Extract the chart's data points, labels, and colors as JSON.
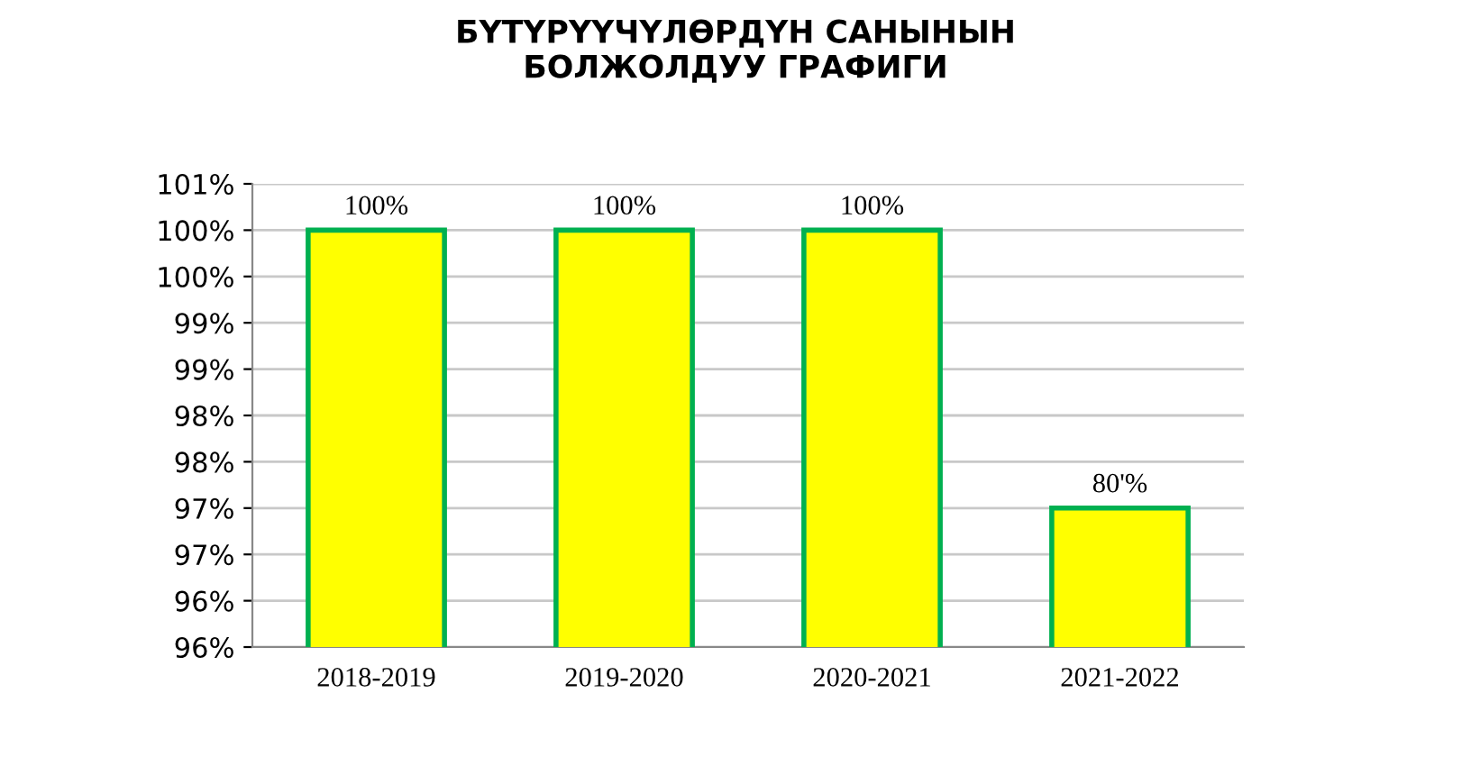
{
  "chart_data": {
    "type": "bar",
    "title": "БҮТҮРҮҮЧҮЛӨРДҮН САНЫНЫН\nБОЛЖОЛДУУ ГРАФИГИ",
    "categories": [
      "2018-2019",
      "2019-2020",
      "2020-2021",
      "2021-2022"
    ],
    "series": [
      {
        "color": "#ffff00",
        "values": [
          100.5,
          100.5,
          100.5,
          97.5
        ]
      }
    ],
    "value_labels": [
      "100%",
      "100%",
      "100%",
      "80'%"
    ],
    "ylim": [
      96,
      101
    ],
    "yticks": [
      {
        "value": 96,
        "label": "96%"
      },
      {
        "value": 96.5,
        "label": "96%"
      },
      {
        "value": 97,
        "label": "97%"
      },
      {
        "value": 97.5,
        "label": "97%"
      },
      {
        "value": 98,
        "label": "98%"
      },
      {
        "value": 98.5,
        "label": "98%"
      },
      {
        "value": 99,
        "label": "99%"
      },
      {
        "value": 99.5,
        "label": "99%"
      },
      {
        "value": 100,
        "label": "100%"
      },
      {
        "value": 100.5,
        "label": "100%"
      },
      {
        "value": 101,
        "label": "101%"
      }
    ],
    "grid": "y",
    "legend": false
  }
}
